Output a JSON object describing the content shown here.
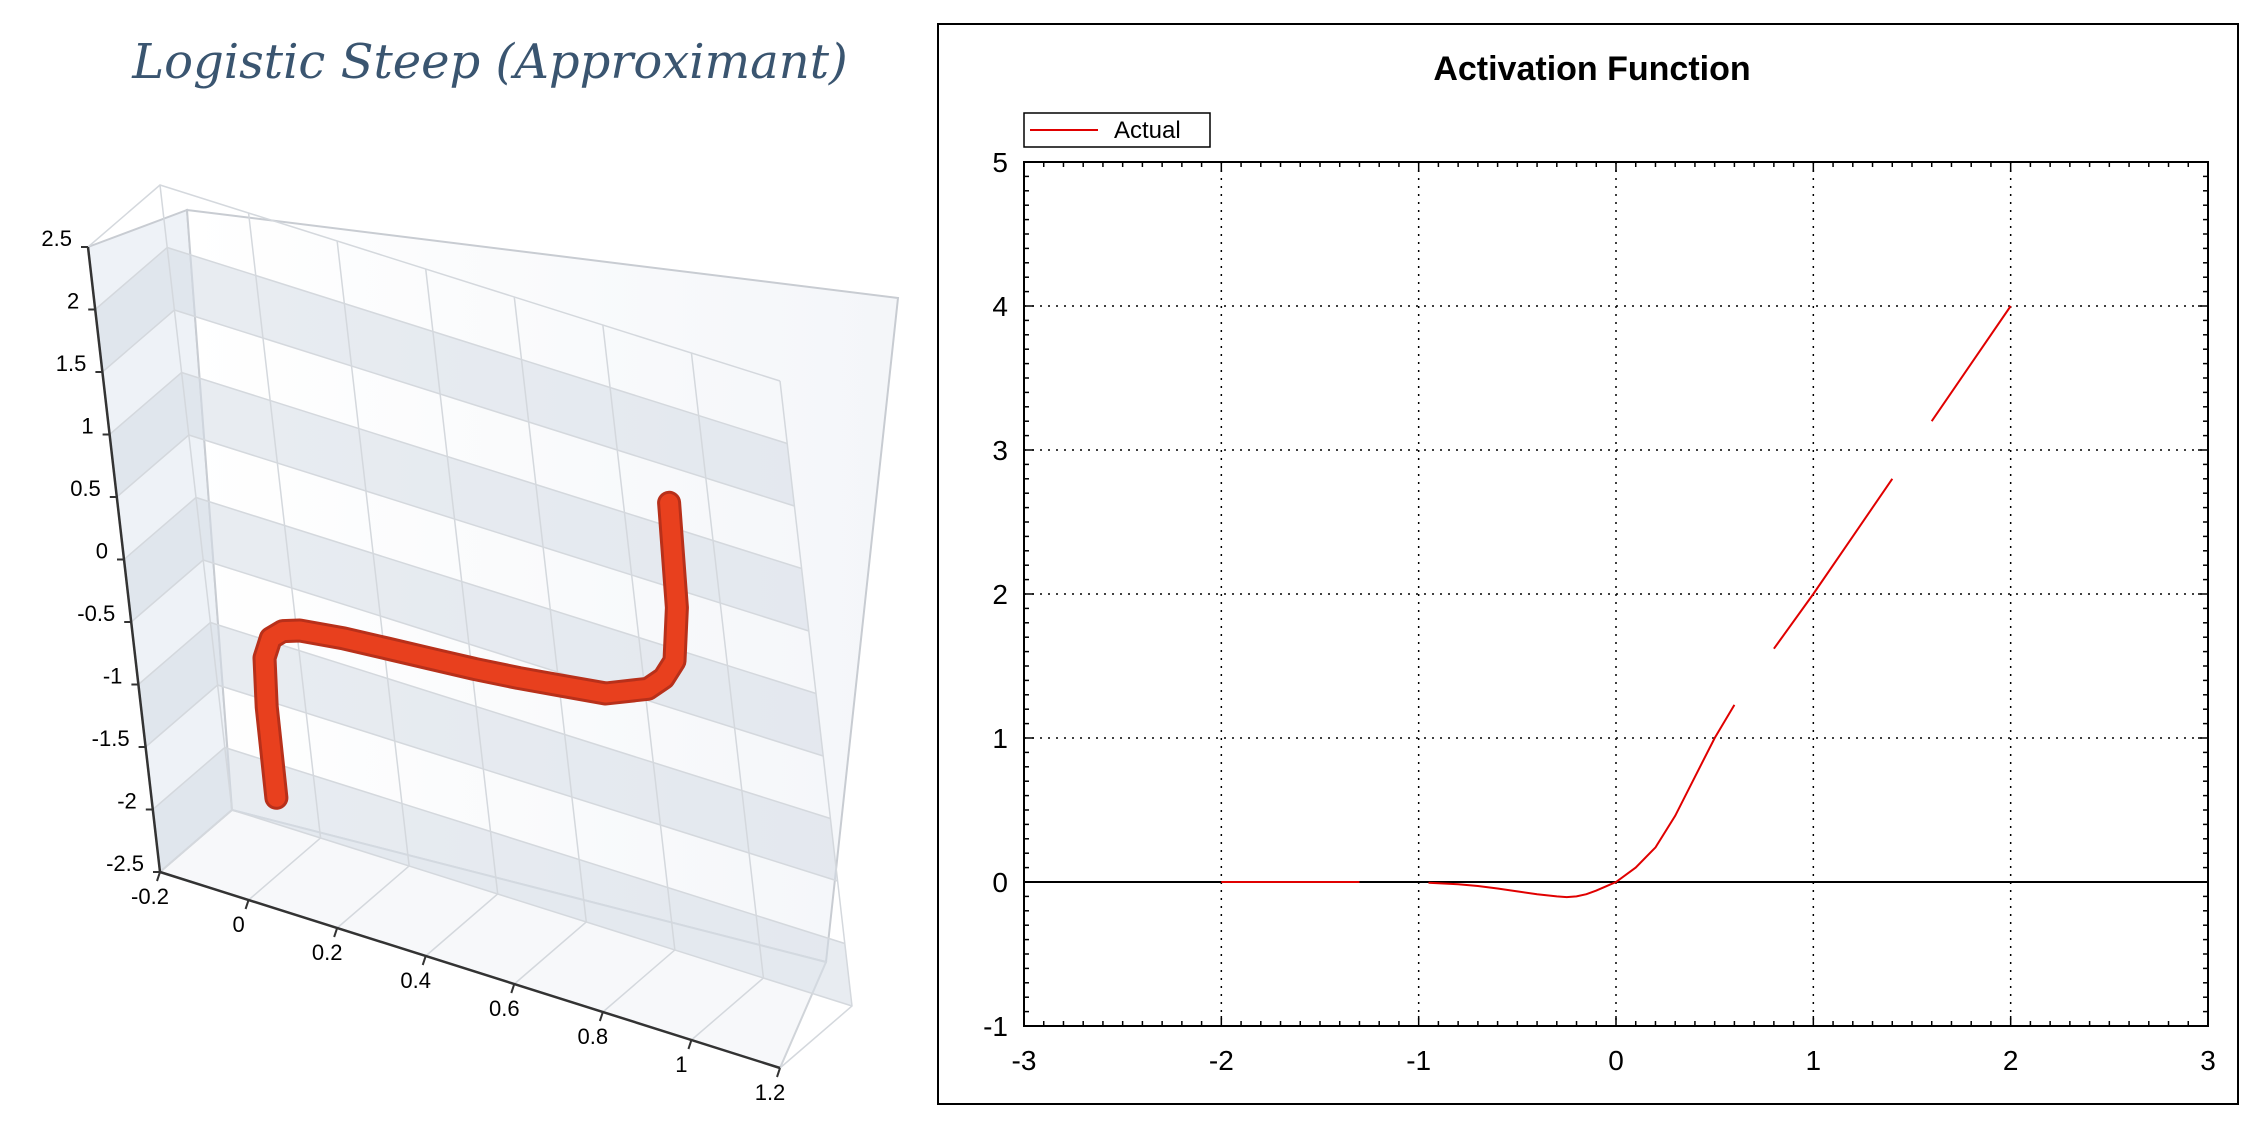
{
  "chart_data": [
    {
      "type": "line",
      "title": "Logistic Steep (Approximant)",
      "x_ticks": [
        "-0.2",
        "0",
        "0.2",
        "0.4",
        "0.6",
        "0.8",
        "1",
        "1.2"
      ],
      "y_ticks": [
        "-2.5",
        "-2",
        "-1.5",
        "-1",
        "-0.5",
        "0",
        "0.5",
        "1",
        "1.5",
        "2",
        "2.5"
      ],
      "xlim": [
        -0.2,
        1.2
      ],
      "ylim": [
        -2.5,
        2.5
      ],
      "three_d": true,
      "grid": true,
      "series": [
        {
          "color": "#e8401e",
          "x": [
            0,
            0.002,
            0.01,
            0.03,
            0.06,
            0.1,
            0.2,
            0.3,
            0.4,
            0.5,
            0.6,
            0.7,
            0.8,
            0.9,
            0.94,
            0.97,
            0.99,
            1.0
          ],
          "y": [
            -1.93,
            -1.2,
            -0.8,
            -0.62,
            -0.53,
            -0.48,
            -0.43,
            -0.4,
            -0.37,
            -0.34,
            -0.3,
            -0.25,
            -0.2,
            -0.05,
            0.08,
            0.25,
            0.7,
            1.55
          ]
        }
      ]
    },
    {
      "type": "line",
      "title": "Activation Function",
      "legend": {
        "position": "top-left",
        "entries": [
          "Actual"
        ]
      },
      "x_ticks": [
        "-3",
        "-2",
        "-1",
        "0",
        "1",
        "2",
        "3"
      ],
      "y_ticks": [
        "-1",
        "0",
        "1",
        "2",
        "3",
        "4",
        "5"
      ],
      "xlim": [
        -3,
        3
      ],
      "ylim": [
        -1,
        5
      ],
      "grid": true,
      "series": [
        {
          "name": "Actual",
          "color": "#e00000",
          "x": [
            -2.0,
            -1.9,
            -1.8,
            -1.7,
            -1.6,
            -1.5,
            -1.4,
            -1.3,
            -0.95,
            -0.9,
            -0.8,
            -0.7,
            -0.6,
            -0.5,
            -0.4,
            -0.3,
            -0.25,
            -0.2,
            -0.15,
            -0.1,
            -0.05,
            0.0,
            0.1,
            0.2,
            0.3,
            0.4,
            0.5,
            0.6,
            0.8,
            1.0,
            1.2,
            1.4,
            1.6,
            1.8,
            2.0
          ],
          "y": [
            0.0,
            0.0,
            0.0,
            0.0,
            0.0,
            0.0,
            0.0,
            0.0,
            -0.005,
            -0.008,
            -0.015,
            -0.028,
            -0.045,
            -0.065,
            -0.085,
            -0.1,
            -0.105,
            -0.1,
            -0.085,
            -0.06,
            -0.03,
            0.0,
            0.1,
            0.24,
            0.46,
            0.73,
            1.0,
            1.23,
            1.62,
            2.0,
            2.4,
            2.8,
            3.2,
            3.6,
            4.0
          ]
        }
      ]
    }
  ]
}
